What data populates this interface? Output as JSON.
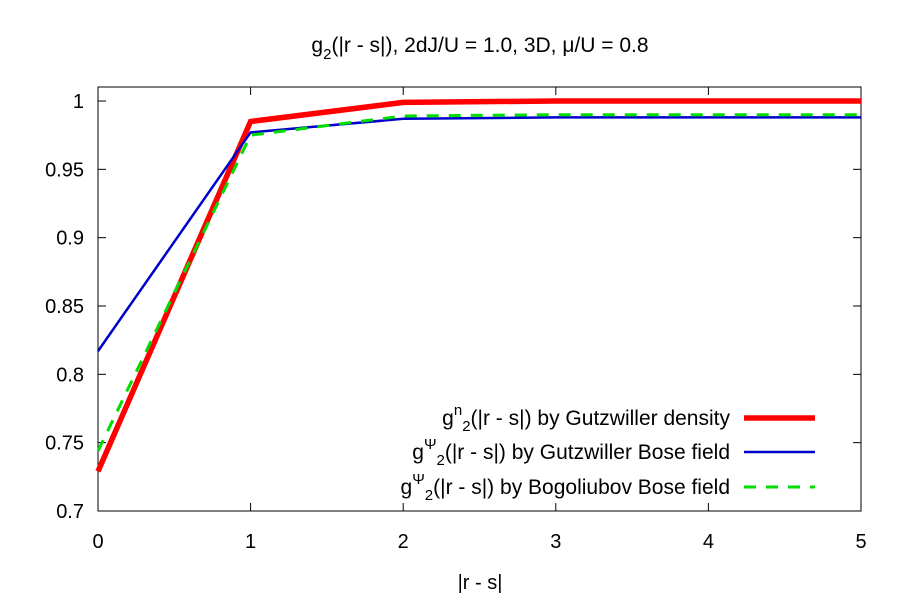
{
  "chart_data": {
    "type": "line",
    "title": {
      "base": "g",
      "sub": "2",
      "rest": "(|r - s|), 2dJ/U = 1.0, 3D, μ/U = 0.8"
    },
    "xlabel": "|r - s|",
    "ylabel": "",
    "xlim": [
      0,
      5
    ],
    "ylim": [
      0.7,
      1.0
    ],
    "x_ticks": [
      0,
      1,
      2,
      3,
      4,
      5
    ],
    "x_tick_labels": [
      "0",
      "1",
      "2",
      "3",
      "4",
      "5"
    ],
    "y_ticks": [
      0.7,
      0.75,
      0.8,
      0.85,
      0.9,
      0.95,
      1.0
    ],
    "y_tick_labels": [
      "0.7",
      "0.75",
      "0.8",
      "0.85",
      "0.9",
      "0.95",
      "1"
    ],
    "grid": false,
    "legend_position": "bottom-right",
    "series": [
      {
        "legend": {
          "base": "g",
          "sup": "n",
          "sub": "2",
          "rest": "(|r - s|) by Gutzwiller density"
        },
        "color": "#ff0000",
        "style": "solid-thick",
        "x": [
          0,
          1,
          2,
          3,
          4,
          5
        ],
        "y": [
          0.729,
          0.985,
          0.999,
          1.0,
          1.0,
          1.0
        ]
      },
      {
        "legend": {
          "base": "g",
          "sup": "Ψ",
          "sub": "2",
          "rest": "(|r - s|) by Gutzwiller Bose field"
        },
        "color": "#0000cc",
        "style": "solid",
        "x": [
          0,
          1,
          2,
          3,
          4,
          5
        ],
        "y": [
          0.817,
          0.977,
          0.987,
          0.988,
          0.988,
          0.988
        ]
      },
      {
        "legend": {
          "base": "g",
          "sup": "Ψ",
          "sub": "2",
          "rest": "(|r - s|) by Bogoliubov Bose field"
        },
        "color": "#00dd00",
        "style": "dashed",
        "x": [
          0,
          1,
          2,
          3,
          4,
          5
        ],
        "y": [
          0.744,
          0.975,
          0.989,
          0.99,
          0.99,
          0.99
        ]
      }
    ]
  }
}
